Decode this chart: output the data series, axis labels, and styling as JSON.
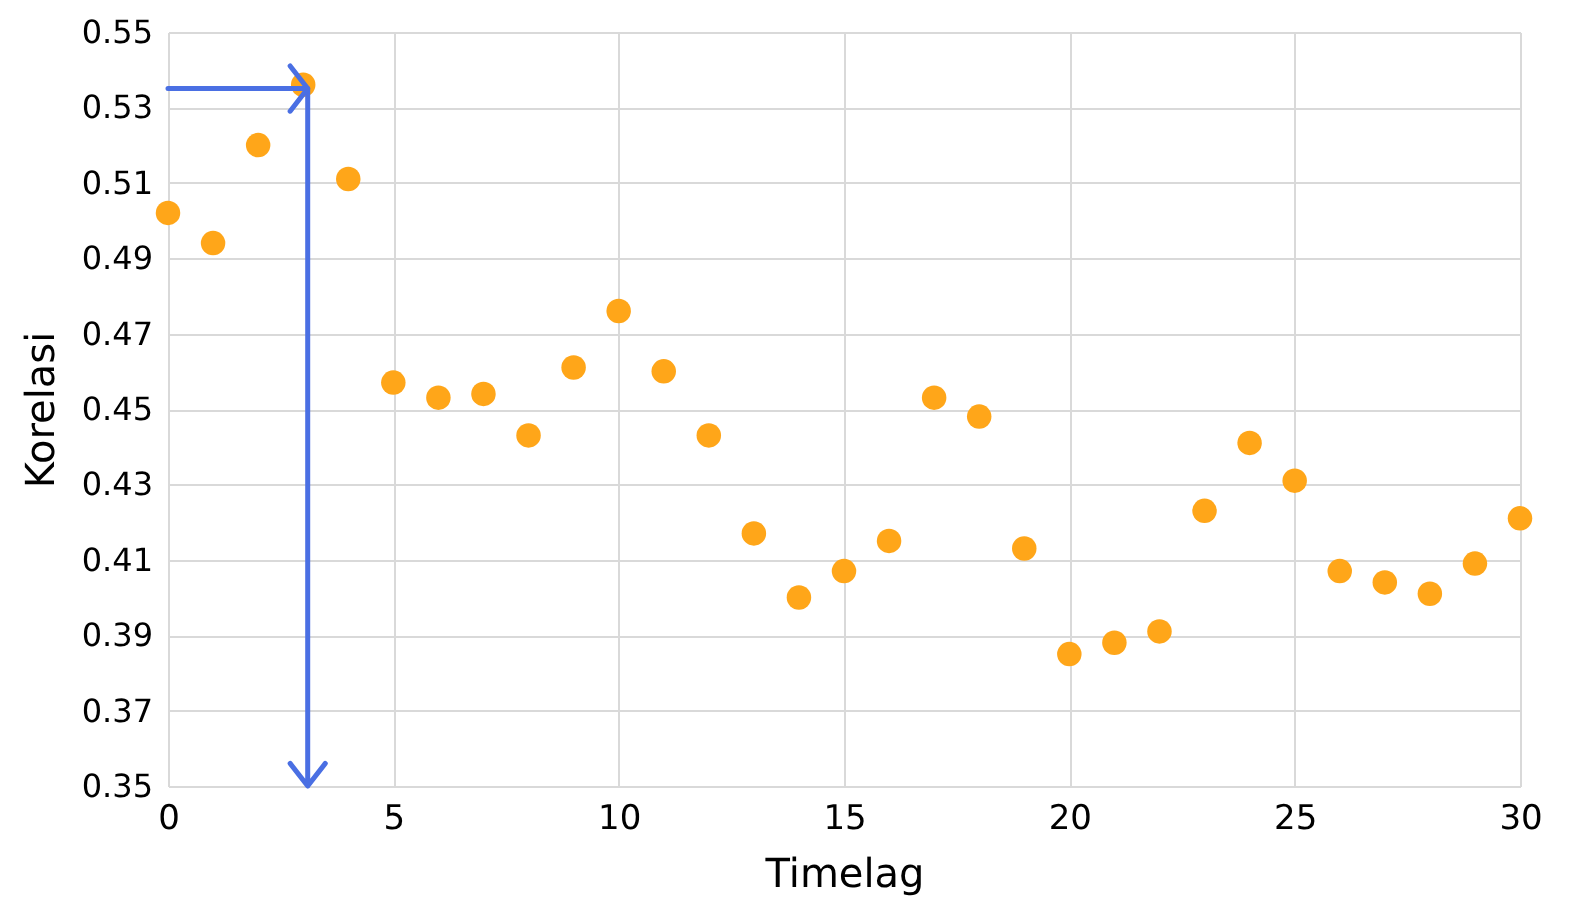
{
  "chart_data": {
    "type": "scatter",
    "xlabel": "Timelag",
    "ylabel": "Korelasi",
    "x": [
      0,
      1,
      2,
      3,
      4,
      5,
      6,
      7,
      8,
      9,
      10,
      11,
      12,
      13,
      14,
      15,
      16,
      17,
      18,
      19,
      20,
      21,
      22,
      23,
      24,
      25,
      26,
      27,
      28,
      29,
      30
    ],
    "series": [
      {
        "color": "#ffa619",
        "values": [
          0.502,
          0.494,
          0.52,
          0.536,
          0.511,
          0.457,
          0.453,
          0.454,
          0.443,
          0.461,
          0.476,
          0.46,
          0.443,
          0.417,
          0.4,
          0.407,
          0.415,
          0.453,
          0.448,
          0.413,
          0.385,
          0.388,
          0.391,
          0.423,
          0.441,
          0.431,
          0.407,
          0.404,
          0.401,
          0.409,
          0.421
        ]
      }
    ],
    "xlim": [
      0,
      30
    ],
    "xticks": [
      0,
      5,
      10,
      15,
      20,
      25,
      30
    ],
    "ylim": [
      0.35,
      0.55
    ],
    "yticks": [
      0.35,
      0.37,
      0.39,
      0.41,
      0.43,
      0.45,
      0.47,
      0.49,
      0.51,
      0.53,
      0.55
    ],
    "ref_lines": [
      {
        "axis": "x",
        "value": 3.1,
        "color": "#4a6fe3"
      },
      {
        "axis": "y",
        "value": 0.535,
        "color": "#4a6fe3"
      }
    ],
    "grid": true,
    "marker": "circle"
  }
}
